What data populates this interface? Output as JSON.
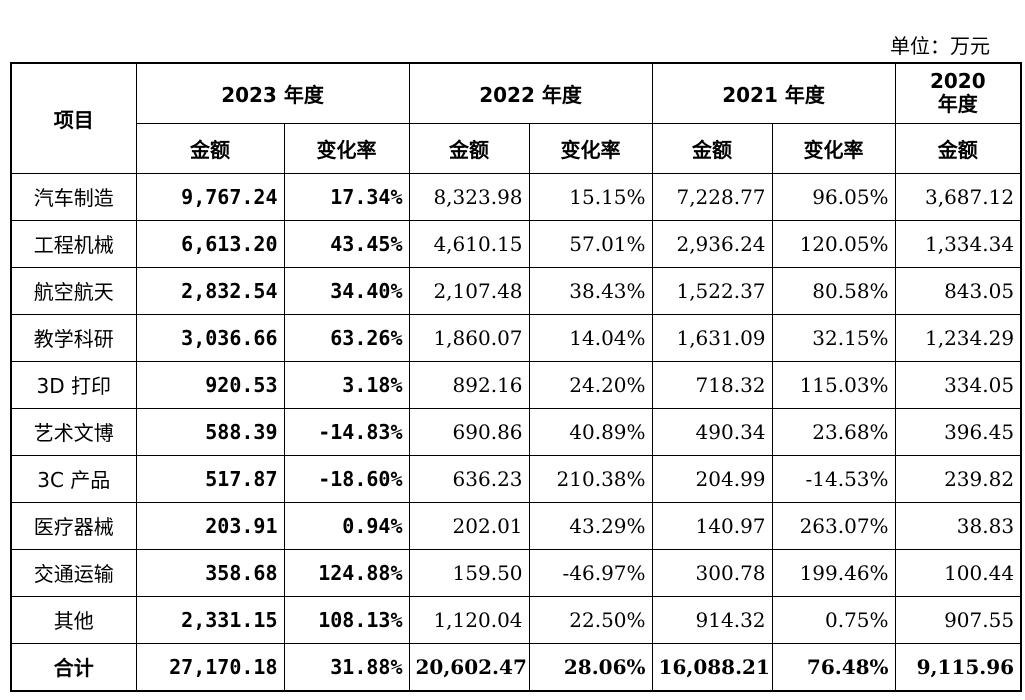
{
  "unit_label": "单位：万元",
  "header": {
    "item": "项目",
    "y2023": "2023 年度",
    "y2022": "2022 年度",
    "y2021": "2021 年度",
    "y2020": "2020\n年度",
    "amount": "金额",
    "change": "变化率"
  },
  "rows": [
    {
      "label": "汽车制造",
      "a2023": "9,767.24",
      "c2023": "17.34%",
      "a2022": "8,323.98",
      "c2022": "15.15%",
      "a2021": "7,228.77",
      "c2021": "96.05%",
      "a2020": "3,687.12"
    },
    {
      "label": "工程机械",
      "a2023": "6,613.20",
      "c2023": "43.45%",
      "a2022": "4,610.15",
      "c2022": "57.01%",
      "a2021": "2,936.24",
      "c2021": "120.05%",
      "a2020": "1,334.34"
    },
    {
      "label": "航空航天",
      "a2023": "2,832.54",
      "c2023": "34.40%",
      "a2022": "2,107.48",
      "c2022": "38.43%",
      "a2021": "1,522.37",
      "c2021": "80.58%",
      "a2020": "843.05"
    },
    {
      "label": "教学科研",
      "a2023": "3,036.66",
      "c2023": "63.26%",
      "a2022": "1,860.07",
      "c2022": "14.04%",
      "a2021": "1,631.09",
      "c2021": "32.15%",
      "a2020": "1,234.29"
    },
    {
      "label": "3D 打印",
      "a2023": "920.53",
      "c2023": "3.18%",
      "a2022": "892.16",
      "c2022": "24.20%",
      "a2021": "718.32",
      "c2021": "115.03%",
      "a2020": "334.05"
    },
    {
      "label": "艺术文博",
      "a2023": "588.39",
      "c2023": "-14.83%",
      "a2022": "690.86",
      "c2022": "40.89%",
      "a2021": "490.34",
      "c2021": "23.68%",
      "a2020": "396.45"
    },
    {
      "label": "3C 产品",
      "a2023": "517.87",
      "c2023": "-18.60%",
      "a2022": "636.23",
      "c2022": "210.38%",
      "a2021": "204.99",
      "c2021": "-14.53%",
      "a2020": "239.82"
    },
    {
      "label": "医疗器械",
      "a2023": "203.91",
      "c2023": "0.94%",
      "a2022": "202.01",
      "c2022": "43.29%",
      "a2021": "140.97",
      "c2021": "263.07%",
      "a2020": "38.83"
    },
    {
      "label": "交通运输",
      "a2023": "358.68",
      "c2023": "124.88%",
      "a2022": "159.50",
      "c2022": "-46.97%",
      "a2021": "300.78",
      "c2021": "199.46%",
      "a2020": "100.44"
    },
    {
      "label": "其他",
      "a2023": "2,331.15",
      "c2023": "108.13%",
      "a2022": "1,120.04",
      "c2022": "22.50%",
      "a2021": "914.32",
      "c2021": "0.75%",
      "a2020": "907.55"
    },
    {
      "label": "合计",
      "a2023": "27,170.18",
      "c2023": "31.88%",
      "a2022": "20,602.47",
      "c2022": "28.06%",
      "a2021": "16,088.21",
      "c2021": "76.48%",
      "a2020": "9,115.96"
    }
  ]
}
